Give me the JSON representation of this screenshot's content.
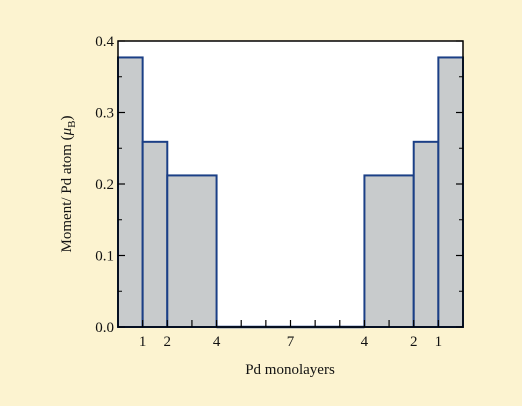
{
  "chart_data": {
    "type": "bar",
    "xlabel": "Pd monolayers",
    "ylabel_main": "Moment/ Pd atom (",
    "ylabel_mu": "μ",
    "ylabel_sub": "B",
    "ylabel_close": ")",
    "ylim": [
      0,
      0.4
    ],
    "yticks": [
      {
        "value": 0.0,
        "label": "0.0"
      },
      {
        "value": 0.1,
        "label": "0.1"
      },
      {
        "value": 0.2,
        "label": "0.2"
      },
      {
        "value": 0.3,
        "label": "0.3"
      },
      {
        "value": 0.4,
        "label": "0.4"
      }
    ],
    "xlim": [
      0,
      14
    ],
    "xticks": [
      {
        "value": 1,
        "label": "1"
      },
      {
        "value": 2,
        "label": "2"
      },
      {
        "value": 3,
        "label": ""
      },
      {
        "value": 4,
        "label": "4"
      },
      {
        "value": 5,
        "label": ""
      },
      {
        "value": 6,
        "label": ""
      },
      {
        "value": 7,
        "label": "7"
      },
      {
        "value": 8,
        "label": ""
      },
      {
        "value": 9,
        "label": ""
      },
      {
        "value": 10,
        "label": "4"
      },
      {
        "value": 11,
        "label": ""
      },
      {
        "value": 12,
        "label": "2"
      },
      {
        "value": 13,
        "label": "1"
      }
    ],
    "bars": [
      {
        "x0": 0,
        "x1": 1,
        "value": 0.377
      },
      {
        "x0": 1,
        "x1": 2,
        "value": 0.259
      },
      {
        "x0": 2,
        "x1": 4,
        "value": 0.212
      },
      {
        "x0": 4,
        "x1": 10,
        "value": 0.0
      },
      {
        "x0": 10,
        "x1": 12,
        "value": 0.212
      },
      {
        "x0": 12,
        "x1": 13,
        "value": 0.259
      },
      {
        "x0": 13,
        "x1": 14,
        "value": 0.377
      }
    ],
    "grid": false,
    "colors": {
      "background": "#fcf3d0",
      "plot_background": "#ffffff",
      "bar_fill": "#c8cbcc",
      "bar_edge": "#1b3f86",
      "axis": "#000000"
    }
  }
}
